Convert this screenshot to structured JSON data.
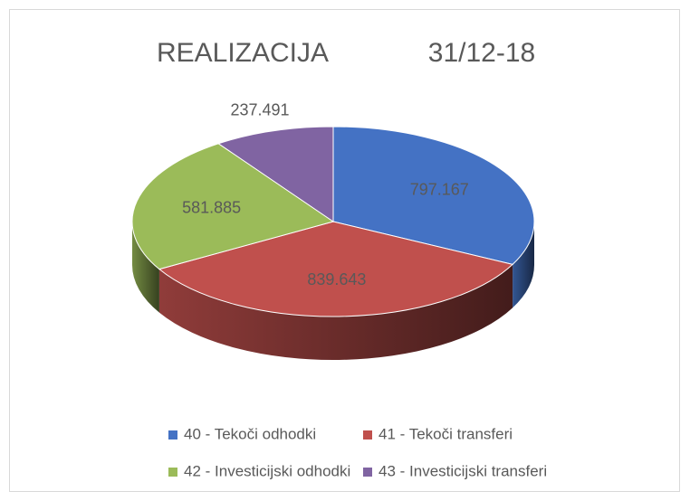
{
  "chart_data": {
    "type": "pie3d",
    "title": "REALIZACIJA",
    "subtitle": "31/12-18",
    "series": [
      {
        "name": "40 - Tekoči odhodki",
        "color": "#4472c4"
      },
      {
        "name": "41 - Tekoči transferi",
        "color": "#c0504d"
      },
      {
        "name": "42 - Investicijski odhodki",
        "color": "#9bbb59"
      },
      {
        "name": "43 - Investicijski transferi",
        "color": "#8064a2"
      }
    ],
    "values": [
      797.167,
      839.643,
      581.885,
      237.491
    ],
    "legend": "bottom"
  }
}
